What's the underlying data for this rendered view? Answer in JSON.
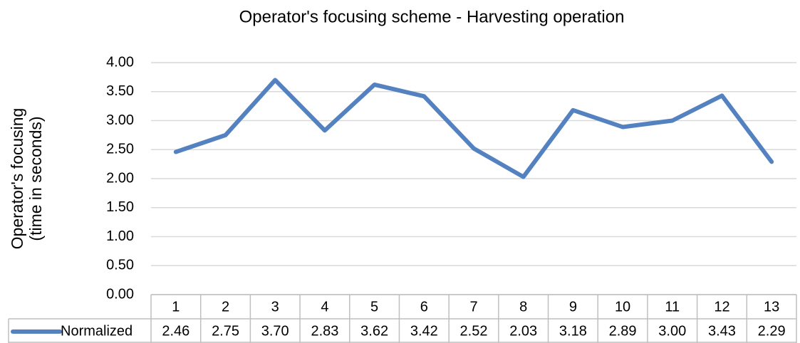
{
  "chart_data": {
    "type": "line",
    "title": "Operator's focusing scheme - Harvesting operation",
    "ylabel": [
      "Operator's focusing",
      "(time in seconds)"
    ],
    "categories": [
      "1",
      "2",
      "3",
      "4",
      "5",
      "6",
      "7",
      "8",
      "9",
      "10",
      "11",
      "12",
      "13"
    ],
    "series": [
      {
        "name": "Normalized",
        "color": "#5482c0",
        "values": [
          2.46,
          2.75,
          3.7,
          2.83,
          3.62,
          3.42,
          2.52,
          2.03,
          3.18,
          2.89,
          3.0,
          3.43,
          2.29
        ],
        "value_labels": [
          "2.46",
          "2.75",
          "3.70",
          "2.83",
          "3.62",
          "3.42",
          "2.52",
          "2.03",
          "3.18",
          "2.89",
          "3.00",
          "3.43",
          "2.29"
        ]
      }
    ],
    "ylim": [
      0,
      4
    ],
    "yticks": [
      {
        "value": 0,
        "label": "0.00"
      },
      {
        "value": 0.5,
        "label": "0.50"
      },
      {
        "value": 1,
        "label": "1.00"
      },
      {
        "value": 1.5,
        "label": "1.50"
      },
      {
        "value": 2,
        "label": "2.00"
      },
      {
        "value": 2.5,
        "label": "2.50"
      },
      {
        "value": 3,
        "label": "3.00"
      },
      {
        "value": 3.5,
        "label": "3.50"
      },
      {
        "value": 4,
        "label": "4.00"
      }
    ],
    "grid": true,
    "data_table": true
  }
}
